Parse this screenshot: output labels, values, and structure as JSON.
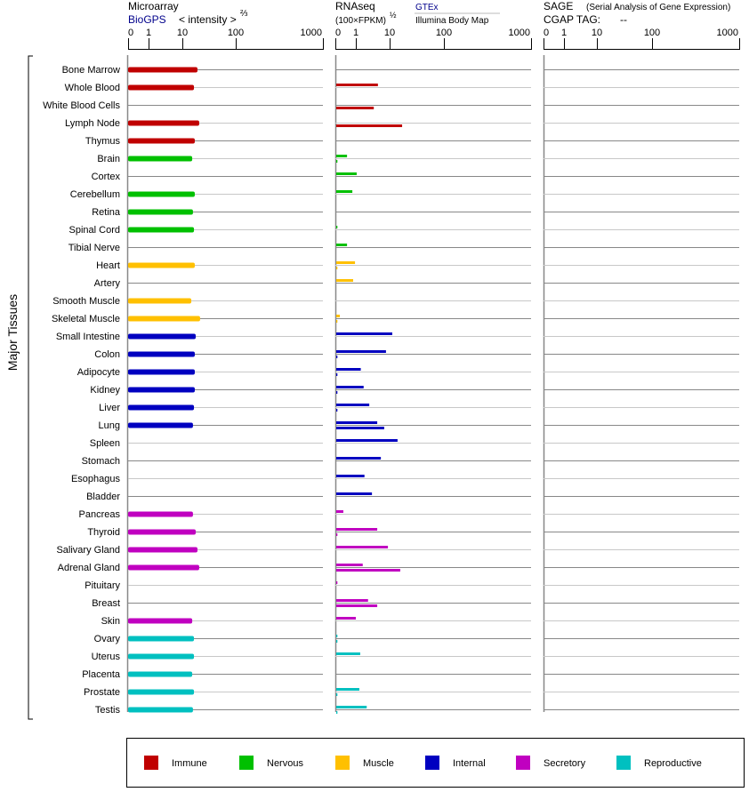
{
  "headers": {
    "microarray": {
      "title": "Microarray",
      "source": "BioGPS",
      "unit": "< intensity >",
      "unit_exp": "⅔"
    },
    "rnaseq": {
      "title": "RNAseq",
      "unit": "(100×FPKM)",
      "unit_exp": "½",
      "source1": "GTEx",
      "source2": "Illumina Body Map"
    },
    "sage": {
      "title": "SAGE",
      "subtitle": "(Serial Analysis of Gene Expression)",
      "tag_label": "CGAP TAG:",
      "tag_value": "--"
    }
  },
  "y_group_label": "Major Tissues",
  "colors": {
    "Immune": "#c00000",
    "Nervous": "#00c000",
    "Muscle": "#ffc000",
    "Internal": "#0000c0",
    "Secretory": "#c000c0",
    "Reproductive": "#00c0c0"
  },
  "legend": [
    "Immune",
    "Nervous",
    "Muscle",
    "Internal",
    "Secretory",
    "Reproductive"
  ],
  "chart_data": {
    "type": "bar",
    "orientation": "horizontal",
    "axis_ticks": [
      "0",
      "1",
      "10",
      "100",
      "1000"
    ],
    "xlim": [
      0,
      1000
    ],
    "grid": true,
    "legend_position": "bottom",
    "series": [
      {
        "name": "BioGPS",
        "panel": "Microarray"
      },
      {
        "name": "GTEx",
        "panel": "RNAseq"
      },
      {
        "name": "Illumina Body Map",
        "panel": "RNAseq"
      }
    ],
    "tissues": [
      {
        "name": "Bone Marrow",
        "category": "Immune",
        "biogps": 19.2,
        "gtex": null,
        "illumina": null
      },
      {
        "name": "Whole Blood",
        "category": "Immune",
        "biogps": 16.5,
        "gtex": 4.5,
        "illumina": null
      },
      {
        "name": "White Blood Cells",
        "category": "Immune",
        "biogps": null,
        "gtex": null,
        "illumina": 3.4
      },
      {
        "name": "Lymph Node",
        "category": "Immune",
        "biogps": 20.7,
        "gtex": null,
        "illumina": 17
      },
      {
        "name": "Thymus",
        "category": "Immune",
        "biogps": 17.1,
        "gtex": null,
        "illumina": null
      },
      {
        "name": "Brain",
        "category": "Nervous",
        "biogps": 15.3,
        "gtex": 0.57,
        "illumina": 0.1
      },
      {
        "name": "Cortex",
        "category": "Nervous",
        "biogps": null,
        "gtex": 1.06,
        "illumina": null
      },
      {
        "name": "Cerebellum",
        "category": "Nervous",
        "biogps": 17.1,
        "gtex": 0.83,
        "illumina": null
      },
      {
        "name": "Retina",
        "category": "Nervous",
        "biogps": 15.8,
        "gtex": null,
        "illumina": null
      },
      {
        "name": "Spinal Cord",
        "category": "Nervous",
        "biogps": 16.5,
        "gtex": 0.1,
        "illumina": null
      },
      {
        "name": "Tibial Nerve",
        "category": "Nervous",
        "biogps": null,
        "gtex": 0.57,
        "illumina": null
      },
      {
        "name": "Heart",
        "category": "Muscle",
        "biogps": 17.1,
        "gtex": 0.96,
        "illumina": 0.1
      },
      {
        "name": "Artery",
        "category": "Muscle",
        "biogps": null,
        "gtex": 0.87,
        "illumina": null
      },
      {
        "name": "Smooth Muscle",
        "category": "Muscle",
        "biogps": 14.7,
        "gtex": null,
        "illumina": null
      },
      {
        "name": "Skeletal Muscle",
        "category": "Muscle",
        "biogps": 21.5,
        "gtex": 0.22,
        "illumina": 0.1
      },
      {
        "name": "Small Intestine",
        "category": "Internal",
        "biogps": 17.8,
        "gtex": 11.2,
        "illumina": null
      },
      {
        "name": "Colon",
        "category": "Internal",
        "biogps": 17.1,
        "gtex": 7.8,
        "illumina": 0.1
      },
      {
        "name": "Adipocyte",
        "category": "Internal",
        "biogps": 17.1,
        "gtex": 1.4,
        "illumina": 0.1
      },
      {
        "name": "Kidney",
        "category": "Internal",
        "biogps": 17.1,
        "gtex": 1.7,
        "illumina": 0.1
      },
      {
        "name": "Liver",
        "category": "Internal",
        "biogps": 16.5,
        "gtex": 2.5,
        "illumina": 0.1
      },
      {
        "name": "Lung",
        "category": "Internal",
        "biogps": 15.8,
        "gtex": 4.3,
        "illumina": 6.9
      },
      {
        "name": "Spleen",
        "category": "Internal",
        "biogps": null,
        "gtex": 14,
        "illumina": null
      },
      {
        "name": "Stomach",
        "category": "Internal",
        "biogps": null,
        "gtex": 5.5,
        "illumina": null
      },
      {
        "name": "Esophagus",
        "category": "Internal",
        "biogps": null,
        "gtex": 1.8,
        "illumina": null
      },
      {
        "name": "Bladder",
        "category": "Internal",
        "biogps": null,
        "gtex": 3.0,
        "illumina": null
      },
      {
        "name": "Pancreas",
        "category": "Secretory",
        "biogps": 15.8,
        "gtex": 0.39,
        "illumina": null
      },
      {
        "name": "Thyroid",
        "category": "Secretory",
        "biogps": 17.8,
        "gtex": 4.3,
        "illumina": 0.1
      },
      {
        "name": "Salivary Gland",
        "category": "Secretory",
        "biogps": 19.2,
        "gtex": 8.9,
        "illumina": null
      },
      {
        "name": "Adrenal Gland",
        "category": "Secretory",
        "biogps": 20.7,
        "gtex": 1.6,
        "illumina": 15.7
      },
      {
        "name": "Pituitary",
        "category": "Secretory",
        "biogps": null,
        "gtex": 0.1,
        "illumina": null
      },
      {
        "name": "Breast",
        "category": "Secretory",
        "biogps": null,
        "gtex": 2.3,
        "illumina": 4.3
      },
      {
        "name": "Skin",
        "category": "Secretory",
        "biogps": 15.3,
        "gtex": 1.0,
        "illumina": null
      },
      {
        "name": "Ovary",
        "category": "Reproductive",
        "biogps": 16.5,
        "gtex": 0.1,
        "illumina": 0.1
      },
      {
        "name": "Uterus",
        "category": "Reproductive",
        "biogps": 16.5,
        "gtex": 1.35,
        "illumina": null
      },
      {
        "name": "Placenta",
        "category": "Reproductive",
        "biogps": 15.3,
        "gtex": null,
        "illumina": null
      },
      {
        "name": "Prostate",
        "category": "Reproductive",
        "biogps": 16.5,
        "gtex": 1.27,
        "illumina": 0.1
      },
      {
        "name": "Testis",
        "category": "Reproductive",
        "biogps": 15.8,
        "gtex": 2.1,
        "illumina": 0.1
      }
    ]
  }
}
